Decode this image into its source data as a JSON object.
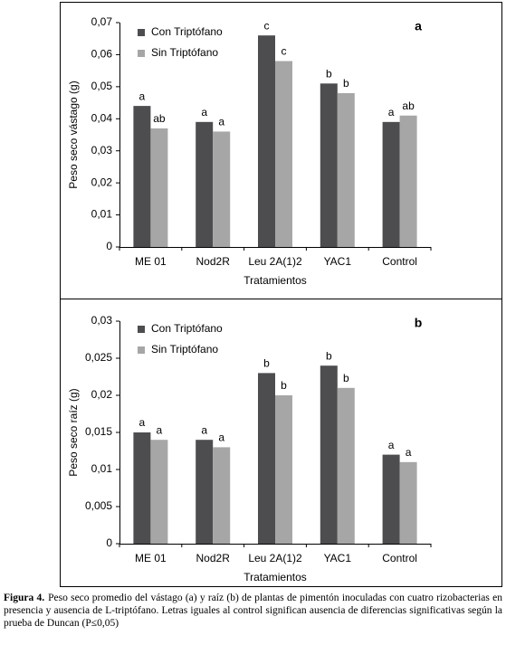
{
  "chart_data": [
    {
      "type": "bar",
      "panel_label": "a",
      "y_label": "Peso seco vástago (g)",
      "x_label": "Tratamientos",
      "categories": [
        "ME 01",
        "Nod2R",
        "Leu 2A(1)2",
        "YAC1",
        "Control"
      ],
      "series": [
        {
          "name": "Con Triptófano",
          "color": "#4d4d4f",
          "values": [
            0.044,
            0.039,
            0.066,
            0.051,
            0.039
          ],
          "annotations": [
            "a",
            "a",
            "c",
            "b",
            "a"
          ]
        },
        {
          "name": "Sin Triptófano",
          "color": "#a6a6a6",
          "values": [
            0.037,
            0.036,
            0.058,
            0.048,
            0.041
          ],
          "annotations": [
            "ab",
            "a",
            "c",
            "b",
            "ab"
          ]
        }
      ],
      "ylim": [
        0,
        0.07
      ],
      "yticks": [
        0,
        {
          "value": 0.01,
          "label": "0,01"
        },
        {
          "value": 0.02,
          "label": "0,02"
        },
        {
          "value": 0.03,
          "label": "0,03"
        },
        {
          "value": 0.04,
          "label": "0,04"
        },
        {
          "value": 0.05,
          "label": "0,05"
        },
        {
          "value": 0.06,
          "label": "0,06"
        },
        {
          "value": 0.07,
          "label": "0,07"
        }
      ],
      "grid": false
    },
    {
      "type": "bar",
      "panel_label": "b",
      "y_label": "Peso seco raíz (g)",
      "x_label": "Tratamientos",
      "categories": [
        "ME 01",
        "Nod2R",
        "Leu 2A(1)2",
        "YAC1",
        "Control"
      ],
      "series": [
        {
          "name": "Con Triptófano",
          "color": "#4d4d4f",
          "values": [
            0.015,
            0.014,
            0.023,
            0.024,
            0.012
          ],
          "annotations": [
            "a",
            "a",
            "b",
            "b",
            "a"
          ]
        },
        {
          "name": "Sin Triptófano",
          "color": "#a6a6a6",
          "values": [
            0.014,
            0.013,
            0.02,
            0.021,
            0.011
          ],
          "annotations": [
            "a",
            "a",
            "b",
            "b",
            "a"
          ]
        }
      ],
      "ylim": [
        0,
        0.03
      ],
      "yticks": [
        0,
        {
          "value": 0.005,
          "label": "0,005"
        },
        {
          "value": 0.01,
          "label": "0,01"
        },
        {
          "value": 0.015,
          "label": "0,015"
        },
        {
          "value": 0.02,
          "label": "0,02"
        },
        {
          "value": 0.025,
          "label": "0,025"
        },
        {
          "value": 0.03,
          "label": "0,03"
        }
      ],
      "grid": false
    }
  ],
  "caption_label": "Figura 4.",
  "caption": "Peso seco promedio del vástago (a) y raíz (b) de plantas de pimentón inoculadas con cuatro rizobacterias en presencia y ausencia de L-triptófano. Letras iguales al control significan ausencia de diferencias significativas según la prueba de Duncan (P≤0,05)"
}
